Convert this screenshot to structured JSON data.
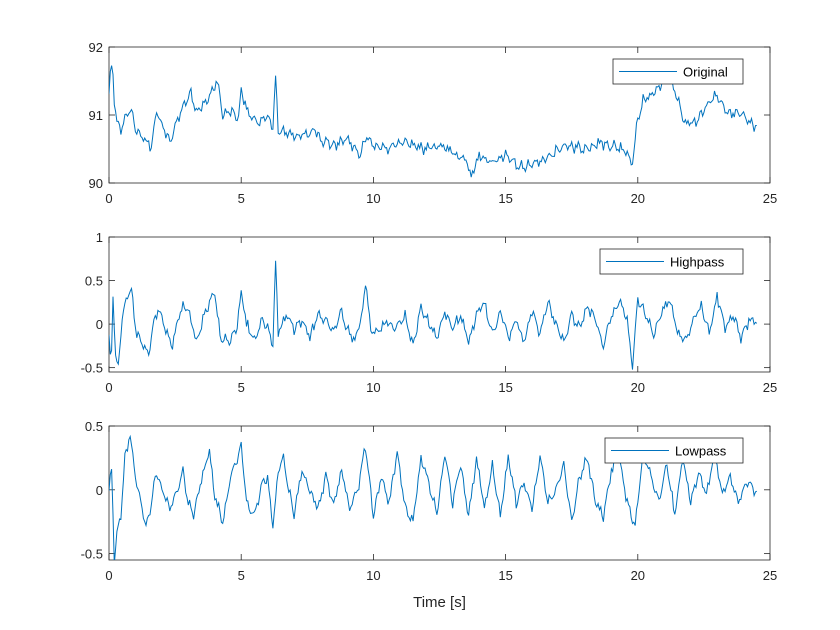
{
  "chart_data": [
    {
      "type": "line",
      "name": "original",
      "legend": "Original",
      "xlim": [
        0,
        25
      ],
      "ylim": [
        90,
        92
      ],
      "xticks": [
        "0",
        "5",
        "10",
        "15",
        "20",
        "25"
      ],
      "yticks": [
        "90",
        "91",
        "92"
      ],
      "xlabel": "",
      "legend_position": "top-right",
      "x_end": 24.5,
      "anchors": [
        [
          0,
          91.3
        ],
        [
          0.05,
          91.6
        ],
        [
          0.12,
          91.75
        ],
        [
          0.2,
          91.2
        ],
        [
          0.3,
          90.9
        ],
        [
          0.45,
          90.75
        ],
        [
          0.6,
          90.95
        ],
        [
          0.8,
          91.1
        ],
        [
          1.0,
          90.8
        ],
        [
          1.2,
          90.7
        ],
        [
          1.4,
          90.6
        ],
        [
          1.6,
          90.55
        ],
        [
          1.8,
          91.05
        ],
        [
          2.0,
          90.85
        ],
        [
          2.3,
          90.6
        ],
        [
          2.6,
          90.95
        ],
        [
          2.9,
          91.2
        ],
        [
          3.1,
          91.35
        ],
        [
          3.3,
          91.05
        ],
        [
          3.6,
          91.15
        ],
        [
          3.9,
          91.35
        ],
        [
          4.1,
          91.5
        ],
        [
          4.3,
          91.0
        ],
        [
          4.6,
          91.05
        ],
        [
          4.9,
          90.95
        ],
        [
          5.0,
          91.35
        ],
        [
          5.3,
          91.0
        ],
        [
          5.6,
          90.9
        ],
        [
          6.0,
          90.95
        ],
        [
          6.2,
          90.85
        ],
        [
          6.3,
          91.55
        ],
        [
          6.4,
          90.75
        ],
        [
          6.7,
          90.75
        ],
        [
          7.0,
          90.7
        ],
        [
          7.5,
          90.7
        ],
        [
          7.8,
          90.8
        ],
        [
          8.0,
          90.65
        ],
        [
          8.5,
          90.55
        ],
        [
          9.0,
          90.65
        ],
        [
          9.2,
          90.55
        ],
        [
          9.5,
          90.4
        ],
        [
          9.7,
          90.7
        ],
        [
          10.0,
          90.55
        ],
        [
          10.5,
          90.5
        ],
        [
          11.0,
          90.6
        ],
        [
          11.5,
          90.55
        ],
        [
          12.0,
          90.5
        ],
        [
          12.5,
          90.55
        ],
        [
          13.0,
          90.45
        ],
        [
          13.5,
          90.35
        ],
        [
          13.7,
          90.1
        ],
        [
          14.0,
          90.4
        ],
        [
          14.5,
          90.3
        ],
        [
          15.0,
          90.4
        ],
        [
          15.5,
          90.25
        ],
        [
          16.0,
          90.25
        ],
        [
          16.5,
          90.35
        ],
        [
          17.0,
          90.5
        ],
        [
          17.5,
          90.55
        ],
        [
          18.0,
          90.5
        ],
        [
          18.5,
          90.6
        ],
        [
          19.0,
          90.55
        ],
        [
          19.5,
          90.5
        ],
        [
          19.8,
          90.3
        ],
        [
          20.0,
          90.95
        ],
        [
          20.2,
          91.2
        ],
        [
          20.5,
          91.3
        ],
        [
          20.8,
          91.4
        ],
        [
          21.1,
          91.65
        ],
        [
          21.4,
          91.35
        ],
        [
          21.8,
          90.85
        ],
        [
          22.2,
          90.9
        ],
        [
          22.6,
          91.15
        ],
        [
          23.0,
          91.3
        ],
        [
          23.4,
          91.0
        ],
        [
          23.8,
          91.05
        ],
        [
          24.2,
          90.9
        ],
        [
          24.5,
          90.85
        ]
      ]
    },
    {
      "type": "line",
      "name": "highpass",
      "legend": "Highpass",
      "xlim": [
        0,
        25
      ],
      "ylim": [
        -0.55,
        1
      ],
      "xticks": [
        "0",
        "5",
        "10",
        "15",
        "20",
        "25"
      ],
      "yticks": [
        "-0.5",
        "0",
        "0.5",
        "1"
      ],
      "ytick_values": [
        -0.5,
        0,
        0.5,
        1
      ],
      "xlabel": "",
      "legend_position": "top-right",
      "x_end": 24.5,
      "anchors": [
        [
          0,
          -0.1
        ],
        [
          0.08,
          -0.55
        ],
        [
          0.15,
          0.3
        ],
        [
          0.25,
          -0.35
        ],
        [
          0.35,
          -0.5
        ],
        [
          0.5,
          0.1
        ],
        [
          0.7,
          0.35
        ],
        [
          0.85,
          0.38
        ],
        [
          1.0,
          -0.05
        ],
        [
          1.2,
          -0.2
        ],
        [
          1.5,
          -0.35
        ],
        [
          1.7,
          0.05
        ],
        [
          1.9,
          0.18
        ],
        [
          2.1,
          -0.05
        ],
        [
          2.4,
          -0.25
        ],
        [
          2.6,
          0.05
        ],
        [
          2.8,
          0.2
        ],
        [
          3.0,
          0.15
        ],
        [
          3.3,
          -0.2
        ],
        [
          3.6,
          0.1
        ],
        [
          3.8,
          0.25
        ],
        [
          4.0,
          0.38
        ],
        [
          4.2,
          -0.15
        ],
        [
          4.5,
          -0.2
        ],
        [
          4.8,
          -0.1
        ],
        [
          5.0,
          0.35
        ],
        [
          5.2,
          0.0
        ],
        [
          5.5,
          -0.2
        ],
        [
          5.8,
          0.05
        ],
        [
          6.0,
          -0.05
        ],
        [
          6.2,
          -0.25
        ],
        [
          6.3,
          0.7
        ],
        [
          6.4,
          -0.1
        ],
        [
          6.7,
          0.1
        ],
        [
          7.0,
          -0.05
        ],
        [
          7.3,
          0.05
        ],
        [
          7.6,
          -0.15
        ],
        [
          7.9,
          0.1
        ],
        [
          8.2,
          0.05
        ],
        [
          8.5,
          -0.1
        ],
        [
          8.8,
          0.15
        ],
        [
          9.0,
          -0.05
        ],
        [
          9.3,
          -0.2
        ],
        [
          9.6,
          0.15
        ],
        [
          9.7,
          0.52
        ],
        [
          9.9,
          -0.1
        ],
        [
          10.2,
          -0.1
        ],
        [
          10.5,
          0.05
        ],
        [
          10.8,
          -0.05
        ],
        [
          11.2,
          0.1
        ],
        [
          11.5,
          -0.25
        ],
        [
          11.8,
          0.2
        ],
        [
          12.1,
          0.0
        ],
        [
          12.4,
          -0.15
        ],
        [
          12.7,
          0.15
        ],
        [
          13.0,
          -0.05
        ],
        [
          13.3,
          0.1
        ],
        [
          13.6,
          -0.2
        ],
        [
          13.9,
          0.1
        ],
        [
          14.2,
          0.25
        ],
        [
          14.5,
          -0.1
        ],
        [
          14.8,
          0.15
        ],
        [
          15.1,
          -0.15
        ],
        [
          15.4,
          0.05
        ],
        [
          15.7,
          -0.2
        ],
        [
          16.0,
          0.15
        ],
        [
          16.3,
          -0.1
        ],
        [
          16.6,
          0.25
        ],
        [
          16.9,
          0.0
        ],
        [
          17.2,
          -0.2
        ],
        [
          17.5,
          0.1
        ],
        [
          17.8,
          -0.05
        ],
        [
          18.1,
          0.2
        ],
        [
          18.4,
          0.05
        ],
        [
          18.7,
          -0.25
        ],
        [
          19.0,
          0.1
        ],
        [
          19.3,
          0.28
        ],
        [
          19.6,
          0.05
        ],
        [
          19.8,
          -0.48
        ],
        [
          20.0,
          0.3
        ],
        [
          20.3,
          0.1
        ],
        [
          20.6,
          -0.15
        ],
        [
          20.9,
          0.15
        ],
        [
          21.2,
          0.28
        ],
        [
          21.5,
          -0.1
        ],
        [
          21.8,
          -0.2
        ],
        [
          22.1,
          0.05
        ],
        [
          22.4,
          0.2
        ],
        [
          22.7,
          -0.1
        ],
        [
          23.0,
          0.33
        ],
        [
          23.3,
          -0.05
        ],
        [
          23.6,
          0.1
        ],
        [
          23.9,
          -0.15
        ],
        [
          24.2,
          0.05
        ],
        [
          24.5,
          0.02
        ]
      ]
    },
    {
      "type": "line",
      "name": "lowpass",
      "legend": "Lowpass",
      "xlim": [
        0,
        25
      ],
      "ylim": [
        -0.55,
        0.5
      ],
      "xticks": [
        "0",
        "5",
        "10",
        "15",
        "20",
        "25"
      ],
      "yticks": [
        "-0.5",
        "0",
        "0.5"
      ],
      "ytick_values": [
        -0.5,
        0,
        0.5
      ],
      "xlabel": "Time [s]",
      "legend_position": "top-right",
      "x_end": 24.5,
      "anchors": [
        [
          0,
          0.0
        ],
        [
          0.1,
          0.15
        ],
        [
          0.2,
          -0.55
        ],
        [
          0.3,
          -0.35
        ],
        [
          0.45,
          -0.2
        ],
        [
          0.6,
          0.25
        ],
        [
          0.8,
          0.43
        ],
        [
          1.0,
          0.1
        ],
        [
          1.2,
          -0.1
        ],
        [
          1.4,
          -0.3
        ],
        [
          1.6,
          -0.1
        ],
        [
          1.8,
          0.15
        ],
        [
          2.0,
          0.0
        ],
        [
          2.3,
          -0.15
        ],
        [
          2.6,
          0.0
        ],
        [
          2.8,
          0.15
        ],
        [
          3.0,
          -0.1
        ],
        [
          3.2,
          -0.2
        ],
        [
          3.5,
          0.1
        ],
        [
          3.8,
          0.3
        ],
        [
          4.0,
          -0.05
        ],
        [
          4.3,
          -0.25
        ],
        [
          4.6,
          0.1
        ],
        [
          4.8,
          0.2
        ],
        [
          5.0,
          0.35
        ],
        [
          5.2,
          -0.1
        ],
        [
          5.5,
          -0.2
        ],
        [
          5.8,
          0.05
        ],
        [
          6.0,
          0.1
        ],
        [
          6.2,
          -0.3
        ],
        [
          6.4,
          0.15
        ],
        [
          6.6,
          0.25
        ],
        [
          6.8,
          0.0
        ],
        [
          7.0,
          -0.2
        ],
        [
          7.3,
          0.15
        ],
        [
          7.6,
          0.0
        ],
        [
          7.9,
          -0.15
        ],
        [
          8.2,
          0.1
        ],
        [
          8.5,
          -0.1
        ],
        [
          8.8,
          0.15
        ],
        [
          9.1,
          -0.15
        ],
        [
          9.4,
          0.0
        ],
        [
          9.7,
          0.35
        ],
        [
          10.0,
          -0.2
        ],
        [
          10.3,
          0.1
        ],
        [
          10.6,
          -0.1
        ],
        [
          10.9,
          0.3
        ],
        [
          11.2,
          -0.15
        ],
        [
          11.5,
          -0.25
        ],
        [
          11.8,
          0.25
        ],
        [
          12.1,
          0.05
        ],
        [
          12.4,
          -0.2
        ],
        [
          12.7,
          0.3
        ],
        [
          13.0,
          -0.1
        ],
        [
          13.3,
          0.2
        ],
        [
          13.6,
          -0.2
        ],
        [
          13.9,
          0.25
        ],
        [
          14.2,
          -0.15
        ],
        [
          14.5,
          0.2
        ],
        [
          14.8,
          -0.2
        ],
        [
          15.1,
          0.25
        ],
        [
          15.4,
          -0.1
        ],
        [
          15.7,
          0.05
        ],
        [
          16.0,
          -0.15
        ],
        [
          16.3,
          0.25
        ],
        [
          16.6,
          -0.1
        ],
        [
          16.9,
          0.0
        ],
        [
          17.2,
          0.2
        ],
        [
          17.5,
          -0.25
        ],
        [
          17.8,
          0.1
        ],
        [
          18.1,
          0.25
        ],
        [
          18.4,
          -0.1
        ],
        [
          18.7,
          -0.2
        ],
        [
          19.0,
          0.15
        ],
        [
          19.3,
          0.25
        ],
        [
          19.6,
          -0.1
        ],
        [
          19.9,
          -0.3
        ],
        [
          20.2,
          0.3
        ],
        [
          20.5,
          0.1
        ],
        [
          20.8,
          -0.1
        ],
        [
          21.1,
          0.2
        ],
        [
          21.4,
          -0.2
        ],
        [
          21.7,
          0.25
        ],
        [
          22.0,
          -0.1
        ],
        [
          22.3,
          0.15
        ],
        [
          22.6,
          -0.05
        ],
        [
          22.9,
          0.3
        ],
        [
          23.2,
          -0.05
        ],
        [
          23.5,
          0.1
        ],
        [
          23.8,
          -0.1
        ],
        [
          24.1,
          0.05
        ],
        [
          24.5,
          0.0
        ]
      ]
    }
  ],
  "colors": {
    "series": "#0072BD",
    "axes": "#262626",
    "background": "#ffffff"
  }
}
